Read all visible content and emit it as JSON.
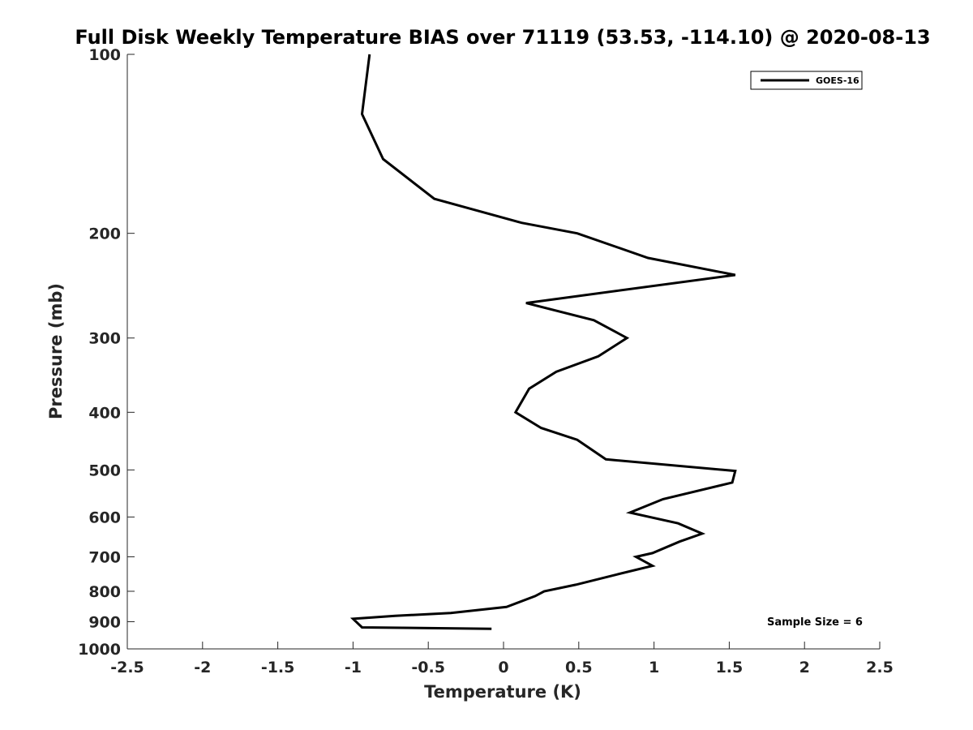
{
  "chart_data": {
    "type": "line",
    "title": "Full Disk Weekly Temperature BIAS over 71119 (53.53, -114.10) @ 2020-08-13",
    "xlabel": "Temperature (K)",
    "ylabel": "Pressure (mb)",
    "xlim": [
      -2.5,
      2.5
    ],
    "ylim": [
      100,
      1000
    ],
    "y_scale": "log",
    "y_reversed": true,
    "grid": false,
    "legend_position": "top-right",
    "x_ticks": [
      -2.5,
      -2,
      -1.5,
      -1,
      -0.5,
      0,
      0.5,
      1,
      1.5,
      2,
      2.5
    ],
    "x_tick_labels": [
      "-2.5",
      "-2",
      "-1.5",
      "-1",
      "-0.5",
      "0",
      "0.5",
      "1",
      "1.5",
      "2",
      "2.5"
    ],
    "y_ticks": [
      100,
      200,
      300,
      400,
      500,
      600,
      700,
      800,
      900,
      1000
    ],
    "y_tick_labels": [
      "100",
      "200",
      "300",
      "400",
      "500",
      "600",
      "700",
      "800",
      "900",
      "1000"
    ],
    "series": [
      {
        "name": "GOES-16",
        "color": "#000000",
        "points": [
          {
            "x": -0.89,
            "p": 100
          },
          {
            "x": -0.94,
            "p": 126
          },
          {
            "x": -0.8,
            "p": 150
          },
          {
            "x": -0.46,
            "p": 175
          },
          {
            "x": 0.12,
            "p": 192
          },
          {
            "x": 0.49,
            "p": 200
          },
          {
            "x": 0.96,
            "p": 220
          },
          {
            "x": 1.54,
            "p": 235
          },
          {
            "x": 0.15,
            "p": 262
          },
          {
            "x": 0.6,
            "p": 280
          },
          {
            "x": 0.82,
            "p": 300
          },
          {
            "x": 0.63,
            "p": 322
          },
          {
            "x": 0.35,
            "p": 342
          },
          {
            "x": 0.17,
            "p": 365
          },
          {
            "x": 0.08,
            "p": 400
          },
          {
            "x": 0.25,
            "p": 425
          },
          {
            "x": 0.49,
            "p": 445
          },
          {
            "x": 0.68,
            "p": 480
          },
          {
            "x": 1.54,
            "p": 502
          },
          {
            "x": 1.52,
            "p": 525
          },
          {
            "x": 1.06,
            "p": 560
          },
          {
            "x": 0.84,
            "p": 590
          },
          {
            "x": 1.16,
            "p": 615
          },
          {
            "x": 1.32,
            "p": 640
          },
          {
            "x": 1.17,
            "p": 660
          },
          {
            "x": 0.99,
            "p": 690
          },
          {
            "x": 0.88,
            "p": 700
          },
          {
            "x": 0.99,
            "p": 725
          },
          {
            "x": 0.75,
            "p": 750
          },
          {
            "x": 0.48,
            "p": 780
          },
          {
            "x": 0.27,
            "p": 800
          },
          {
            "x": 0.21,
            "p": 815
          },
          {
            "x": 0.02,
            "p": 850
          },
          {
            "x": -0.35,
            "p": 870
          },
          {
            "x": -0.72,
            "p": 880
          },
          {
            "x": -1.0,
            "p": 890
          },
          {
            "x": -0.94,
            "p": 920
          },
          {
            "x": -0.08,
            "p": 925
          }
        ]
      }
    ],
    "legend": {
      "entries": [
        "GOES-16"
      ]
    },
    "annotations": [
      {
        "text": "Sample Size = 6",
        "position": "bottom-right"
      }
    ]
  }
}
